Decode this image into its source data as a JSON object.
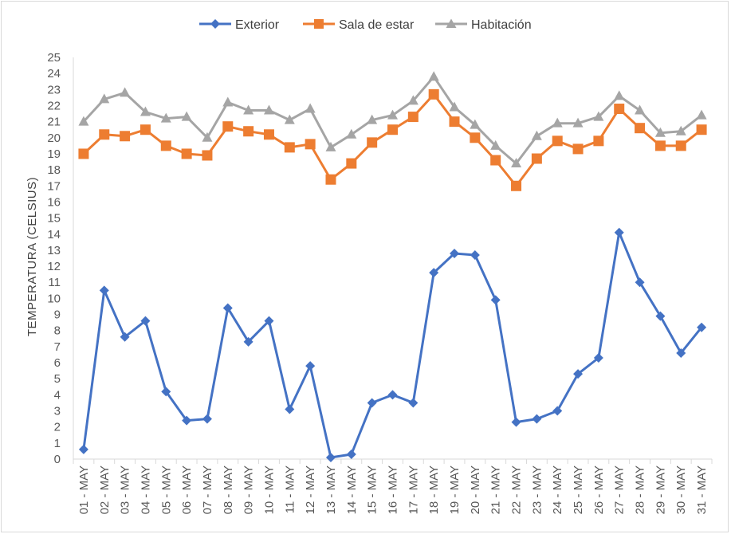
{
  "chart_data": {
    "type": "line",
    "title": "",
    "xlabel": "",
    "ylabel": "TEMPERATURA (CELSIUS)",
    "ylim": [
      0,
      25
    ],
    "ytick_step": 1,
    "grid": false,
    "legend_position": "top-center",
    "categories": [
      "01-MAY",
      "02-MAY",
      "03-MAY",
      "04-MAY",
      "05-MAY",
      "06-MAY",
      "07-MAY",
      "08-MAY",
      "09-MAY",
      "10-MAY",
      "11-MAY",
      "12-MAY",
      "13-MAY",
      "14-MAY",
      "15-MAY",
      "16-MAY",
      "17-MAY",
      "18-MAY",
      "19-MAY",
      "20-MAY",
      "21-MAY",
      "22-MAY",
      "23-MAY",
      "24-MAY",
      "25-MAY",
      "26-MAY",
      "27-MAY",
      "28-MAY",
      "29-MAY",
      "30-MAY",
      "31-MAY"
    ],
    "series": [
      {
        "name": "Exterior",
        "color": "#4472c4",
        "marker": "diamond",
        "values": [
          0.6,
          10.5,
          7.6,
          8.6,
          4.2,
          2.4,
          2.5,
          9.4,
          7.3,
          8.6,
          3.1,
          5.8,
          0.1,
          0.3,
          3.5,
          4.0,
          3.5,
          11.6,
          12.8,
          12.7,
          9.9,
          2.3,
          2.5,
          3.0,
          5.3,
          6.3,
          14.1,
          11.0,
          8.9,
          6.6,
          8.2
        ]
      },
      {
        "name": "Sala de estar",
        "color": "#ed7d31",
        "marker": "square",
        "values": [
          19.0,
          20.2,
          20.1,
          20.5,
          19.5,
          19.0,
          18.9,
          20.7,
          20.4,
          20.2,
          19.4,
          19.6,
          17.4,
          18.4,
          19.7,
          20.5,
          21.3,
          22.7,
          21.0,
          20.0,
          18.6,
          17.0,
          18.7,
          19.8,
          19.3,
          19.8,
          21.8,
          20.6,
          19.5,
          19.5,
          20.5
        ]
      },
      {
        "name": "Habitación",
        "color": "#a5a5a5",
        "marker": "triangle",
        "values": [
          21.0,
          22.4,
          22.8,
          21.6,
          21.2,
          21.3,
          20.0,
          22.2,
          21.7,
          21.7,
          21.1,
          21.8,
          19.4,
          20.2,
          21.1,
          21.4,
          22.3,
          23.8,
          21.9,
          20.8,
          19.5,
          18.4,
          20.1,
          20.9,
          20.9,
          21.3,
          22.6,
          21.7,
          20.3,
          20.4,
          21.4
        ]
      }
    ]
  }
}
